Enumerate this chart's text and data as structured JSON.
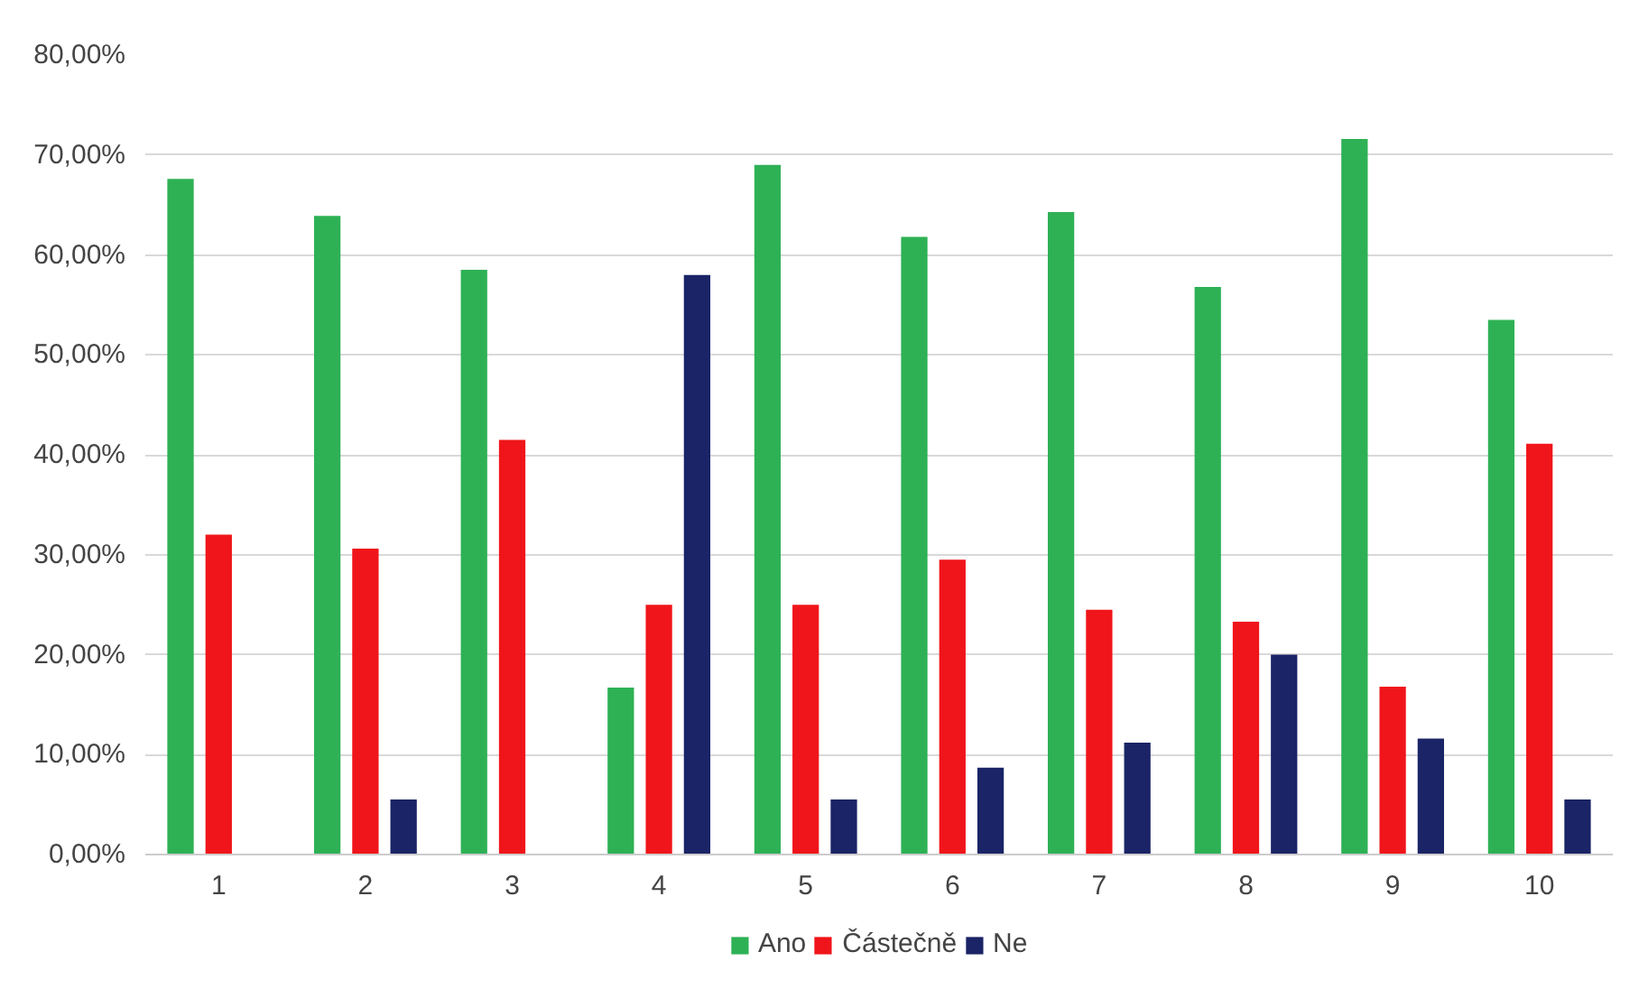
{
  "chart_data": {
    "type": "bar",
    "categories": [
      "1",
      "2",
      "3",
      "4",
      "5",
      "6",
      "7",
      "8",
      "9",
      "10"
    ],
    "series": [
      {
        "name": "Ano",
        "color": "#2eb155",
        "values": [
          67.6,
          63.9,
          58.5,
          16.7,
          69.0,
          61.8,
          64.3,
          56.8,
          71.6,
          53.5
        ]
      },
      {
        "name": "Částečně",
        "color": "#f0151a",
        "values": [
          32.0,
          30.6,
          41.5,
          25.0,
          25.0,
          29.5,
          24.5,
          23.3,
          16.8,
          41.1
        ]
      },
      {
        "name": "Ne",
        "color": "#1a2466",
        "values": [
          0,
          5.5,
          0,
          58.0,
          5.5,
          8.7,
          11.2,
          20.0,
          11.6,
          5.5
        ]
      }
    ],
    "ylim": [
      0,
      80
    ],
    "yticks": [
      {
        "value": 0,
        "label": "0,00%"
      },
      {
        "value": 10,
        "label": "10,00%"
      },
      {
        "value": 20,
        "label": "20,00%"
      },
      {
        "value": 30,
        "label": "30,00%"
      },
      {
        "value": 40,
        "label": "40,00%"
      },
      {
        "value": 50,
        "label": "50,00%"
      },
      {
        "value": 60,
        "label": "60,00%"
      },
      {
        "value": 70,
        "label": "70,00%"
      },
      {
        "value": 80,
        "label": "80,00%"
      }
    ],
    "grid": "y",
    "legend": "bottom"
  }
}
